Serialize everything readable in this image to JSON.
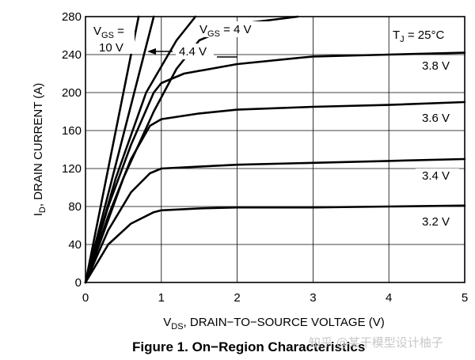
{
  "caption": "Figure 1. On−Region Characteristics",
  "watermark": "知乎 @某干模型设计柚子",
  "chart_data": {
    "type": "line",
    "xlabel": {
      "pre": "V",
      "sub": "DS",
      "post": ", DRAIN−TO−SOURCE VOLTAGE (V)"
    },
    "ylabel": {
      "pre": "I",
      "sub": "D",
      "post": ", DRAIN CURRENT (A)"
    },
    "xlim": [
      0,
      5
    ],
    "ylim": [
      0,
      280
    ],
    "xticks": [
      0,
      1,
      2,
      3,
      4,
      5
    ],
    "yticks": [
      0,
      40,
      80,
      120,
      160,
      200,
      240,
      280
    ],
    "grid": true,
    "condition": {
      "pre": "T",
      "sub": "J",
      "post": " = 25°C"
    },
    "annotations": {
      "vgs10": {
        "pre": "V",
        "sub": "GS",
        "post": " =",
        "line2": "10 V"
      },
      "vgs4": {
        "pre": "V",
        "sub": "GS",
        "post": " = 4 V"
      },
      "v44": "4.4 V"
    },
    "series": [
      {
        "name": "10 V",
        "x": [
          0,
          0.35,
          0.7
        ],
        "y": [
          0,
          140,
          280
        ]
      },
      {
        "name": "",
        "x": [
          0,
          0.45,
          0.9
        ],
        "y": [
          0,
          140,
          280
        ]
      },
      {
        "name": "",
        "x": [
          0,
          0.4,
          0.8,
          1.2,
          1.45
        ],
        "y": [
          0,
          110,
          200,
          255,
          280
        ]
      },
      {
        "name": "4.4 V",
        "x": [
          0,
          0.5,
          0.9,
          1.2,
          1.5,
          2.0,
          2.8
        ],
        "y": [
          0,
          110,
          180,
          225,
          255,
          272,
          280
        ]
      },
      {
        "name": "3.8 V",
        "x": [
          0,
          0.3,
          0.6,
          0.9,
          1.0,
          1.3,
          2.0,
          3.0,
          4.0,
          5.0
        ],
        "y": [
          0,
          80,
          145,
          200,
          210,
          220,
          230,
          238,
          240,
          242
        ]
      },
      {
        "name": "3.6 V",
        "x": [
          0,
          0.3,
          0.6,
          0.85,
          1.0,
          1.5,
          2.0,
          3.0,
          4.0,
          5.0
        ],
        "y": [
          0,
          70,
          130,
          165,
          172,
          178,
          182,
          185,
          187,
          190
        ]
      },
      {
        "name": "3.4 V",
        "x": [
          0,
          0.3,
          0.6,
          0.85,
          1.0,
          1.5,
          2.0,
          3.0,
          4.0,
          5.0
        ],
        "y": [
          0,
          55,
          95,
          115,
          120,
          122,
          124,
          126,
          128,
          130
        ]
      },
      {
        "name": "3.2 V",
        "x": [
          0,
          0.3,
          0.6,
          0.9,
          1.0,
          1.5,
          2.0,
          3.0,
          4.0,
          5.0
        ],
        "y": [
          0,
          40,
          62,
          74,
          76,
          78,
          79,
          79,
          80,
          81
        ]
      }
    ]
  }
}
